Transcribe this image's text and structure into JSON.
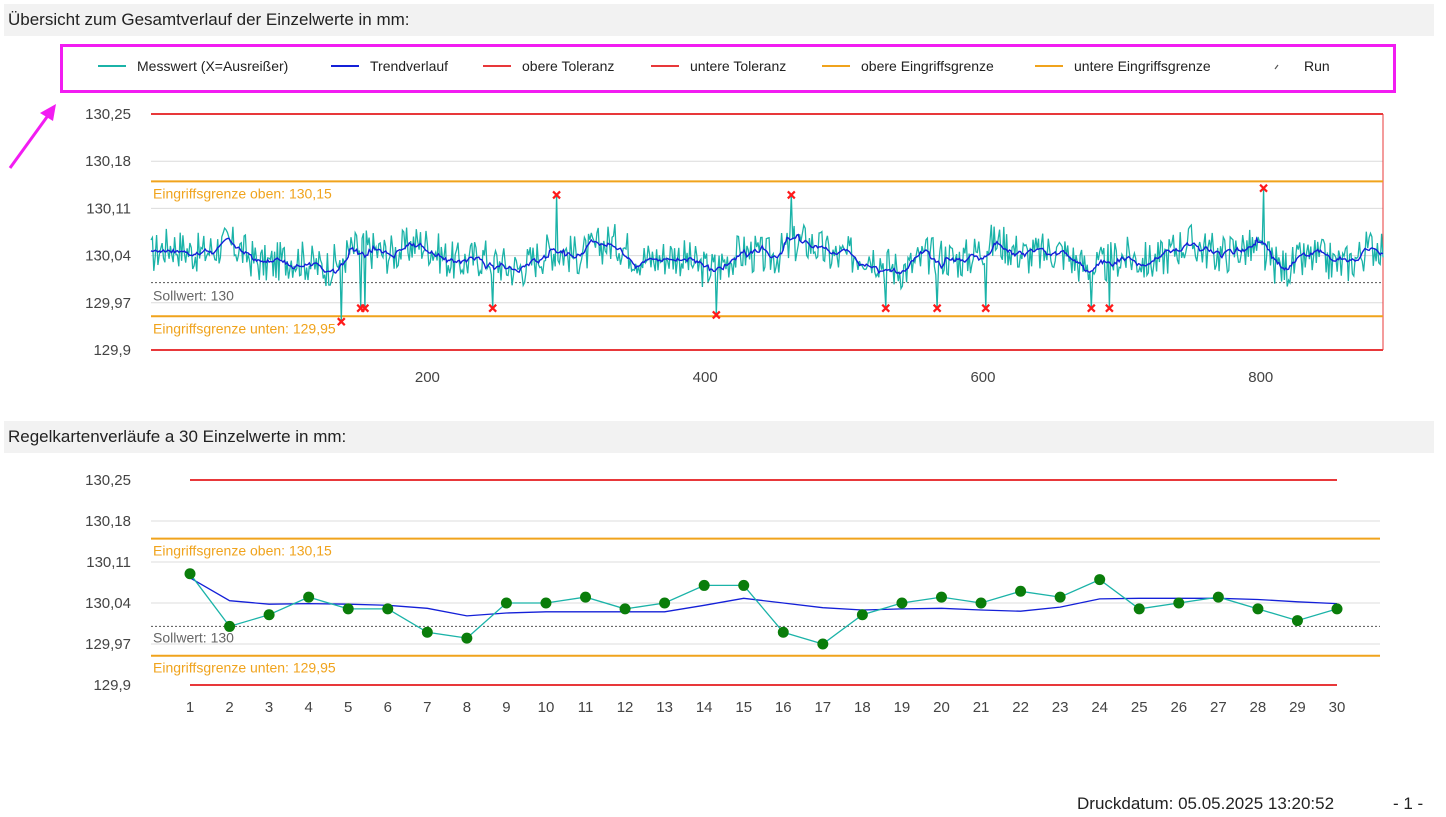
{
  "header_overview": "Übersicht zum Gesamtverlauf der Einzelwerte in mm:",
  "header_control": "Regelkartenverläufe a 30 Einzelwerte in mm:",
  "footer": {
    "print_date": "Druckdatum: 05.05.2025 13:20:52",
    "page": "- 1 -"
  },
  "annotation_color": "#f21cf2",
  "colors": {
    "measure": "#1bb3a8",
    "trend": "#1420d8",
    "tolerance": "#e8383a",
    "intervention": "#f0a31c",
    "sollwert": "#555555",
    "outlier": "#ff1a1a",
    "point": "#0a7d0a"
  },
  "legend": [
    {
      "label": "Messwert (X=Ausreißer)",
      "color": "#1bb3a8",
      "type": "line"
    },
    {
      "label": "Trendverlauf",
      "color": "#1420d8",
      "type": "line"
    },
    {
      "label": "obere Toleranz",
      "color": "#e8383a",
      "type": "line"
    },
    {
      "label": "untere Toleranz",
      "color": "#e8383a",
      "type": "line"
    },
    {
      "label": "obere Eingriffsgrenze",
      "color": "#f0a31c",
      "type": "line"
    },
    {
      "label": "untere Eingriffsgrenze",
      "color": "#f0a31c",
      "type": "line"
    },
    {
      "label": "Run",
      "color": "#555555",
      "type": "run"
    }
  ],
  "chart_data": [
    {
      "type": "line",
      "title": "",
      "y_ticks": [
        "130,25",
        "130,18",
        "130,11",
        "130,04",
        "129,97",
        "129,9"
      ],
      "y_tick_values": [
        130.25,
        130.18,
        130.11,
        130.04,
        129.97,
        129.9
      ],
      "ylim": [
        129.9,
        130.25
      ],
      "x_ticks": [
        "200",
        "400",
        "600",
        "800"
      ],
      "x_tick_values": [
        200,
        400,
        600,
        800
      ],
      "xlim": [
        1,
        888
      ],
      "upper_tolerance": 130.25,
      "lower_tolerance": 129.9,
      "upper_intervention": 130.15,
      "lower_intervention": 129.95,
      "sollwert": 130.0,
      "upper_intervention_label": "Eingriffsgrenze oben: 130,15",
      "lower_intervention_label": "Eingriffsgrenze unten: 129,95",
      "sollwert_label": "Sollwert: 130",
      "measurement_count": 888,
      "measurement_mean": 130.04,
      "measurement_spread": 0.03,
      "outliers": [
        {
          "x": 138,
          "y": 129.942
        },
        {
          "x": 152,
          "y": 129.962
        },
        {
          "x": 155,
          "y": 129.962
        },
        {
          "x": 247,
          "y": 129.962
        },
        {
          "x": 293,
          "y": 130.13
        },
        {
          "x": 408,
          "y": 129.952
        },
        {
          "x": 462,
          "y": 130.13
        },
        {
          "x": 530,
          "y": 129.962
        },
        {
          "x": 567,
          "y": 129.962
        },
        {
          "x": 602,
          "y": 129.962
        },
        {
          "x": 678,
          "y": 129.962
        },
        {
          "x": 691,
          "y": 129.962
        },
        {
          "x": 802,
          "y": 130.14
        }
      ]
    },
    {
      "type": "line",
      "title": "",
      "categories": [
        "1",
        "2",
        "3",
        "4",
        "5",
        "6",
        "7",
        "8",
        "9",
        "10",
        "11",
        "12",
        "13",
        "14",
        "15",
        "16",
        "17",
        "18",
        "19",
        "20",
        "21",
        "22",
        "23",
        "24",
        "25",
        "26",
        "27",
        "28",
        "29",
        "30"
      ],
      "y_ticks": [
        "130,25",
        "130,18",
        "130,11",
        "130,04",
        "129,97",
        "129,9"
      ],
      "y_tick_values": [
        130.25,
        130.18,
        130.11,
        130.04,
        129.97,
        129.9
      ],
      "ylim": [
        129.9,
        130.25
      ],
      "upper_tolerance": 130.25,
      "lower_tolerance": 129.9,
      "upper_intervention": 130.15,
      "lower_intervention": 129.95,
      "sollwert": 130.0,
      "upper_intervention_label": "Eingriffsgrenze oben: 130,15",
      "lower_intervention_label": "Eingriffsgrenze unten: 129,95",
      "sollwert_label": "Sollwert: 130",
      "series": [
        {
          "values": [
            130.09,
            130.0,
            130.02,
            130.05,
            130.03,
            130.03,
            129.99,
            129.98,
            130.04,
            130.04,
            130.05,
            130.03,
            130.04,
            130.07,
            130.07,
            129.99,
            129.97,
            130.02,
            130.04,
            130.05,
            130.04,
            130.06,
            130.05,
            130.08,
            130.03,
            130.04,
            130.05,
            130.03,
            130.01,
            130.03
          ]
        },
        {
          "values": [
            130.083,
            130.044,
            130.038,
            130.039,
            130.038,
            130.036,
            130.031,
            130.018,
            130.023,
            130.025,
            130.025,
            130.025,
            130.025,
            130.036,
            130.048,
            130.04,
            130.032,
            130.028,
            130.03,
            130.031,
            130.028,
            130.026,
            130.033,
            130.047,
            130.048,
            130.048,
            130.048,
            130.046,
            130.042,
            130.039
          ]
        }
      ]
    }
  ]
}
